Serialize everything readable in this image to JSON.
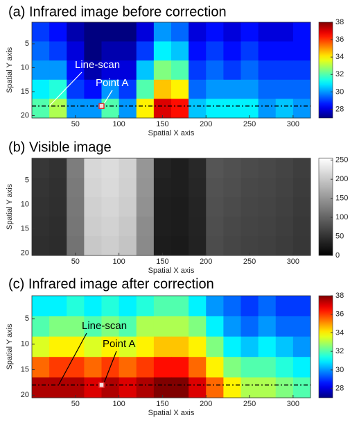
{
  "chart_data": [
    {
      "type": "heatmap",
      "title": "(a) Infrared image before correction",
      "x_label": "Spatial X axis",
      "y_label": "Spatial Y axis",
      "xlim": [
        0,
        320
      ],
      "ylim": [
        0.5,
        20.5
      ],
      "xticks": [
        50,
        100,
        150,
        200,
        250,
        300
      ],
      "yticks": [
        5,
        10,
        15,
        20
      ],
      "colormap": "jet",
      "clim": [
        27,
        38
      ],
      "cticks": [
        28,
        30,
        32,
        34,
        36,
        38
      ],
      "z": [
        [
          29,
          28.5,
          27.5,
          27,
          27,
          27,
          28,
          30,
          29.5,
          28,
          28.5,
          28,
          28.5,
          28,
          28,
          28.5
        ],
        [
          29.5,
          29,
          28,
          27,
          27.5,
          27.5,
          29,
          31,
          30.5,
          28.5,
          29,
          28.5,
          29,
          28.5,
          28.5,
          28.5
        ],
        [
          30,
          30,
          28.5,
          27.5,
          28,
          28,
          30.5,
          32.5,
          32,
          29,
          29.5,
          29,
          29.5,
          29,
          29,
          29
        ],
        [
          31,
          31.5,
          29,
          28.5,
          30,
          29,
          32,
          34.5,
          34,
          29.5,
          30,
          30,
          30,
          29.5,
          29.5,
          29.5
        ],
        [
          32,
          33,
          30,
          30,
          32,
          30,
          34,
          37,
          36.5,
          30.5,
          31,
          31,
          31,
          30,
          30.5,
          30
        ]
      ],
      "annotations": [
        {
          "text": "Line-scan"
        },
        {
          "text": "Point A"
        }
      ],
      "annotation_color": "white",
      "line_scan_y": 18,
      "point_a": {
        "x": 80,
        "y": 18
      }
    },
    {
      "type": "heatmap",
      "title": "(b) Visible image",
      "x_label": "Spatial X axis",
      "y_label": "Spatial Y axis",
      "xlim": [
        0,
        320
      ],
      "ylim": [
        0.5,
        20.5
      ],
      "xticks": [
        50,
        100,
        150,
        200,
        250,
        300
      ],
      "yticks": [
        5,
        10,
        15,
        20
      ],
      "colormap": "gray",
      "clim": [
        0,
        255
      ],
      "cticks": [
        0,
        50,
        100,
        150,
        200,
        250
      ],
      "z": [
        [
          55,
          50,
          125,
          215,
          220,
          210,
          150,
          35,
          30,
          40,
          85,
          80,
          75,
          72,
          68,
          62
        ],
        [
          52,
          48,
          122,
          212,
          218,
          208,
          148,
          32,
          30,
          38,
          82,
          78,
          72,
          70,
          66,
          60
        ],
        [
          50,
          47,
          120,
          208,
          214,
          205,
          145,
          30,
          28,
          36,
          80,
          75,
          70,
          68,
          64,
          58
        ],
        [
          48,
          45,
          118,
          205,
          210,
          200,
          140,
          30,
          28,
          35,
          78,
          72,
          68,
          66,
          62,
          56
        ],
        [
          46,
          44,
          115,
          200,
          206,
          196,
          138,
          28,
          26,
          34,
          76,
          70,
          66,
          64,
          60,
          55
        ]
      ]
    },
    {
      "type": "heatmap",
      "title": "(c) Infrared image after correction",
      "x_label": "Spatial X axis",
      "y_label": "Spatial Y axis",
      "xlim": [
        0,
        320
      ],
      "ylim": [
        0.5,
        20.5
      ],
      "xticks": [
        50,
        100,
        150,
        200,
        250,
        300
      ],
      "yticks": [
        5,
        10,
        15,
        20
      ],
      "colormap": "jet",
      "clim": [
        27,
        38
      ],
      "cticks": [
        28,
        30,
        32,
        34,
        36,
        38
      ],
      "z": [
        [
          31,
          31,
          31.5,
          31,
          31.5,
          31,
          31.5,
          32,
          32,
          31,
          30,
          29.5,
          29,
          29.5,
          29,
          29
        ],
        [
          32,
          32.5,
          32.5,
          32,
          32.5,
          32,
          33,
          33,
          33,
          32.5,
          31,
          30,
          29.5,
          30,
          29.5,
          29.5
        ],
        [
          33.5,
          34,
          34,
          33.5,
          34,
          33.5,
          34,
          34.5,
          34.5,
          34,
          32.5,
          31,
          30.5,
          31,
          30.5,
          30
        ],
        [
          35.5,
          36,
          36,
          35.5,
          36,
          35.5,
          36,
          36.5,
          36.5,
          35.5,
          34,
          32.5,
          32,
          32,
          31.5,
          31
        ],
        [
          37.5,
          37.5,
          37.5,
          37,
          37.5,
          37,
          37.5,
          38,
          38,
          37,
          35.5,
          34,
          33,
          33,
          32.5,
          32
        ]
      ],
      "annotations": [
        {
          "text": "Line-scan"
        },
        {
          "text": "Point A"
        }
      ],
      "annotation_color": "black",
      "line_scan_y": 18,
      "point_a": {
        "x": 80,
        "y": 18
      }
    }
  ]
}
